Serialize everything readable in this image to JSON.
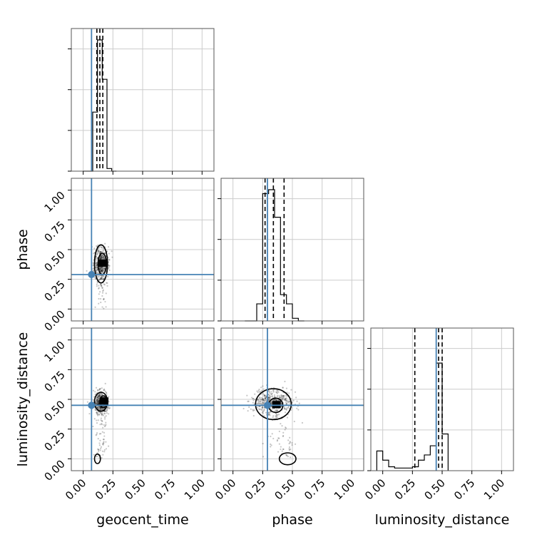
{
  "chart_data": {
    "type": "corner",
    "parameters": [
      "geocent_time",
      "phase",
      "luminosity_distance"
    ],
    "axis_range": [
      -0.1,
      1.1
    ],
    "ticks": [
      0.0,
      0.25,
      0.5,
      0.75,
      1.0
    ],
    "tick_labels": [
      "0.00",
      "0.25",
      "0.50",
      "0.75",
      "1.00"
    ],
    "grid": true,
    "truth_color": "#4682b4",
    "hist_color": "#000000",
    "truths": {
      "geocent_time": 0.07,
      "phase": 0.29,
      "luminosity_distance": 0.45
    },
    "quantiles": {
      "geocent_time": [
        0.115,
        0.14,
        0.165
      ],
      "phase": [
        0.27,
        0.34,
        0.43
      ],
      "luminosity_distance": [
        0.27,
        0.47,
        0.5
      ]
    },
    "histograms": {
      "geocent_time": {
        "bin_edges": [
          0.0,
          0.04,
          0.08,
          0.12,
          0.16,
          0.2,
          0.24,
          0.28
        ],
        "heights": [
          0.0,
          0.0,
          0.45,
          1.0,
          0.7,
          0.02,
          0.0
        ]
      },
      "phase": {
        "bin_edges": [
          0.1,
          0.15,
          0.2,
          0.25,
          0.3,
          0.35,
          0.4,
          0.45,
          0.5,
          0.55,
          0.6
        ],
        "heights": [
          0.0,
          0.0,
          0.13,
          0.97,
          1.0,
          0.79,
          0.2,
          0.13,
          0.02,
          0.0
        ]
      },
      "luminosity_distance": {
        "bin_edges": [
          -0.05,
          0.0,
          0.05,
          0.1,
          0.15,
          0.2,
          0.25,
          0.3,
          0.35,
          0.4,
          0.45,
          0.5,
          0.55
        ],
        "heights": [
          0.15,
          0.08,
          0.03,
          0.02,
          0.02,
          0.02,
          0.03,
          0.08,
          0.12,
          0.19,
          0.82,
          0.28
        ]
      }
    },
    "joint": {
      "phase_vs_geocent_time": {
        "x_param": "geocent_time",
        "y_param": "phase",
        "center": [
          0.15,
          0.38
        ],
        "spread": [
          0.03,
          0.07
        ],
        "contours": [
          {
            "level": "inner",
            "cx": 0.16,
            "cy": 0.38,
            "rx": 0.035,
            "ry": 0.09
          },
          {
            "level": "outer",
            "cx": 0.15,
            "cy": 0.38,
            "rx": 0.055,
            "ry": 0.16
          }
        ]
      },
      "luminosity_distance_vs_geocent_time": {
        "x_param": "geocent_time",
        "y_param": "luminosity_distance",
        "center": [
          0.15,
          0.47
        ],
        "spread": [
          0.03,
          0.05
        ],
        "contours": [
          {
            "level": "inner",
            "cx": 0.17,
            "cy": 0.48,
            "rx": 0.03,
            "ry": 0.05
          },
          {
            "level": "outer",
            "cx": 0.15,
            "cy": 0.48,
            "rx": 0.055,
            "ry": 0.08
          },
          {
            "level": "tail",
            "cx": 0.12,
            "cy": 0.0,
            "rx": 0.025,
            "ry": 0.04
          }
        ]
      },
      "luminosity_distance_vs_phase": {
        "x_param": "phase",
        "y_param": "luminosity_distance",
        "center": [
          0.33,
          0.48
        ],
        "spread": [
          0.08,
          0.05
        ],
        "contours": [
          {
            "level": "inner",
            "cx": 0.36,
            "cy": 0.45,
            "rx": 0.06,
            "ry": 0.06
          },
          {
            "level": "outer",
            "cx": 0.34,
            "cy": 0.46,
            "rx": 0.15,
            "ry": 0.13
          },
          {
            "level": "tail",
            "cx": 0.46,
            "cy": 0.0,
            "rx": 0.07,
            "ry": 0.05
          }
        ]
      }
    }
  }
}
